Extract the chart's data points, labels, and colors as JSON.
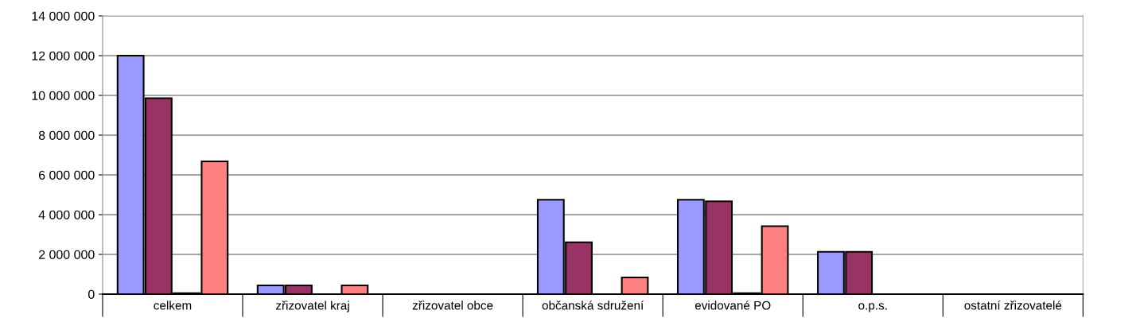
{
  "chart_data": {
    "type": "bar",
    "categories": [
      "celkem",
      "zřizovatel kraj",
      "zřizovatel obce",
      "občanská sdružení",
      "evidované PO",
      "o.p.s.",
      "ostatní zřizovatelé"
    ],
    "series": [
      {
        "color": "#9999ff",
        "values": [
          12000000,
          440000,
          null,
          4750000,
          4750000,
          2130000,
          null
        ]
      },
      {
        "color": "#993366",
        "values": [
          9860000,
          440000,
          null,
          2610000,
          4670000,
          2130000,
          null
        ]
      },
      {
        "color": "#ffffcc",
        "values": [
          50000,
          null,
          null,
          null,
          50000,
          null,
          null
        ]
      },
      {
        "color": "#ff8080",
        "values": [
          6680000,
          440000,
          null,
          840000,
          3420000,
          null,
          null
        ]
      }
    ],
    "ylim": [
      0,
      14000000
    ],
    "yticks": [
      0,
      {
        "value": 2000000,
        "label": "2 000 000"
      },
      {
        "value": 4000000,
        "label": "4 000 000"
      },
      {
        "value": 6000000,
        "label": "6 000 000"
      },
      {
        "value": 8000000,
        "label": "8 000 000"
      },
      {
        "value": 10000000,
        "label": "10 000 000"
      },
      {
        "value": 12000000,
        "label": "12 000 000"
      },
      {
        "value": 14000000,
        "label": "14 000 000"
      }
    ],
    "grid": "y"
  }
}
